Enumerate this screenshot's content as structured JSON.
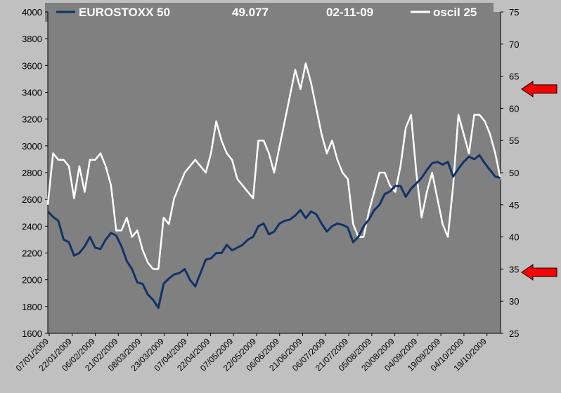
{
  "legend": {
    "series1_label": "EUROSTOXX 50",
    "value": "49.077",
    "date": "02-11-09",
    "series2_label": "oscil 25"
  },
  "colors": {
    "plot_bg": "#808080",
    "page_bg": "#c0c0c0",
    "eurostoxx": "#0f3368",
    "oscil": "#ffffff",
    "arrow": "#ff0000"
  },
  "chart_data": {
    "type": "line",
    "x_tick_labels": [
      "07/01/2009",
      "22/01/2009",
      "06/02/2009",
      "21/02/2009",
      "08/03/2009",
      "23/03/2009",
      "07/04/2009",
      "22/04/2009",
      "07/05/2009",
      "22/05/2009",
      "06/06/2009",
      "21/06/2009",
      "06/07/2009",
      "21/07/2009",
      "05/08/2009",
      "20/08/2009",
      "04/09/2009",
      "19/09/2009",
      "04/10/2009",
      "19/10/2009"
    ],
    "y_left": {
      "min": 1600,
      "max": 4000,
      "ticks": [
        1600,
        1800,
        2000,
        2200,
        2400,
        2600,
        2800,
        3000,
        3200,
        3400,
        3600,
        3800,
        4000
      ]
    },
    "y_right": {
      "min": 25,
      "max": 75,
      "ticks": [
        25,
        30,
        35,
        40,
        45,
        50,
        55,
        60,
        65,
        70,
        75
      ]
    },
    "grid": false,
    "legend_position": "top",
    "markers": [
      {
        "name": "upper-threshold-arrow",
        "axis": "right",
        "value": 63
      },
      {
        "name": "lower-threshold-arrow",
        "axis": "right",
        "value": 34.5
      }
    ],
    "series": [
      {
        "name": "EUROSTOXX 50",
        "axis": "left",
        "points": [
          [
            0,
            2510
          ],
          [
            1,
            2470
          ],
          [
            2,
            2440
          ],
          [
            3,
            2300
          ],
          [
            4,
            2280
          ],
          [
            5,
            2180
          ],
          [
            6,
            2200
          ],
          [
            7,
            2250
          ],
          [
            8,
            2320
          ],
          [
            9,
            2240
          ],
          [
            10,
            2230
          ],
          [
            11,
            2300
          ],
          [
            12,
            2350
          ],
          [
            13,
            2330
          ],
          [
            14,
            2250
          ],
          [
            15,
            2140
          ],
          [
            16,
            2080
          ],
          [
            17,
            1980
          ],
          [
            18,
            1970
          ],
          [
            19,
            1890
          ],
          [
            20,
            1850
          ],
          [
            21,
            1790
          ],
          [
            22,
            1970
          ],
          [
            23,
            2010
          ],
          [
            24,
            2040
          ],
          [
            25,
            2050
          ],
          [
            26,
            2080
          ],
          [
            27,
            2000
          ],
          [
            28,
            1950
          ],
          [
            29,
            2050
          ],
          [
            30,
            2150
          ],
          [
            31,
            2160
          ],
          [
            32,
            2200
          ],
          [
            33,
            2200
          ],
          [
            34,
            2260
          ],
          [
            35,
            2220
          ],
          [
            36,
            2240
          ],
          [
            37,
            2260
          ],
          [
            38,
            2300
          ],
          [
            39,
            2320
          ],
          [
            40,
            2400
          ],
          [
            41,
            2420
          ],
          [
            42,
            2340
          ],
          [
            43,
            2360
          ],
          [
            44,
            2420
          ],
          [
            45,
            2440
          ],
          [
            46,
            2450
          ],
          [
            47,
            2480
          ],
          [
            48,
            2520
          ],
          [
            49,
            2460
          ],
          [
            50,
            2510
          ],
          [
            51,
            2490
          ],
          [
            52,
            2420
          ],
          [
            53,
            2360
          ],
          [
            54,
            2400
          ],
          [
            55,
            2420
          ],
          [
            56,
            2410
          ],
          [
            57,
            2390
          ],
          [
            58,
            2280
          ],
          [
            59,
            2320
          ],
          [
            60,
            2400
          ],
          [
            61,
            2450
          ],
          [
            62,
            2520
          ],
          [
            63,
            2560
          ],
          [
            64,
            2640
          ],
          [
            65,
            2660
          ],
          [
            66,
            2700
          ],
          [
            67,
            2700
          ],
          [
            68,
            2620
          ],
          [
            69,
            2680
          ],
          [
            70,
            2720
          ],
          [
            71,
            2760
          ],
          [
            72,
            2820
          ],
          [
            73,
            2870
          ],
          [
            74,
            2880
          ],
          [
            75,
            2860
          ],
          [
            76,
            2880
          ],
          [
            77,
            2770
          ],
          [
            78,
            2830
          ],
          [
            79,
            2880
          ],
          [
            80,
            2920
          ],
          [
            81,
            2900
          ],
          [
            82,
            2930
          ],
          [
            83,
            2870
          ],
          [
            84,
            2820
          ],
          [
            85,
            2770
          ],
          [
            86,
            2760
          ]
        ]
      },
      {
        "name": "oscil 25",
        "axis": "right",
        "points": [
          [
            0,
            45
          ],
          [
            1,
            53
          ],
          [
            2,
            52
          ],
          [
            3,
            52
          ],
          [
            4,
            51
          ],
          [
            5,
            46
          ],
          [
            6,
            51
          ],
          [
            7,
            47
          ],
          [
            8,
            52
          ],
          [
            9,
            52
          ],
          [
            10,
            53
          ],
          [
            11,
            51
          ],
          [
            12,
            48
          ],
          [
            13,
            41
          ],
          [
            14,
            41
          ],
          [
            15,
            43
          ],
          [
            16,
            40
          ],
          [
            17,
            41
          ],
          [
            18,
            38
          ],
          [
            19,
            36
          ],
          [
            20,
            35
          ],
          [
            21,
            35
          ],
          [
            22,
            43
          ],
          [
            23,
            42
          ],
          [
            24,
            46
          ],
          [
            25,
            48
          ],
          [
            26,
            50
          ],
          [
            27,
            51
          ],
          [
            28,
            52
          ],
          [
            29,
            51
          ],
          [
            30,
            50
          ],
          [
            31,
            53
          ],
          [
            32,
            58
          ],
          [
            33,
            55
          ],
          [
            34,
            53
          ],
          [
            35,
            52
          ],
          [
            36,
            49
          ],
          [
            37,
            48
          ],
          [
            38,
            47
          ],
          [
            39,
            46
          ],
          [
            40,
            55
          ],
          [
            41,
            55
          ],
          [
            42,
            53
          ],
          [
            43,
            50
          ],
          [
            44,
            54
          ],
          [
            45,
            58
          ],
          [
            46,
            62
          ],
          [
            47,
            66
          ],
          [
            48,
            63
          ],
          [
            49,
            67
          ],
          [
            50,
            64
          ],
          [
            51,
            60
          ],
          [
            52,
            56
          ],
          [
            53,
            53
          ],
          [
            54,
            55
          ],
          [
            55,
            52
          ],
          [
            56,
            50
          ],
          [
            57,
            49
          ],
          [
            58,
            42
          ],
          [
            59,
            40
          ],
          [
            60,
            40
          ],
          [
            61,
            44
          ],
          [
            62,
            47
          ],
          [
            63,
            50
          ],
          [
            64,
            50
          ],
          [
            65,
            48
          ],
          [
            66,
            47
          ],
          [
            67,
            51
          ],
          [
            68,
            57
          ],
          [
            69,
            59
          ],
          [
            70,
            50
          ],
          [
            71,
            43
          ],
          [
            72,
            47
          ],
          [
            73,
            50
          ],
          [
            74,
            46
          ],
          [
            75,
            42
          ],
          [
            76,
            40
          ],
          [
            77,
            48
          ],
          [
            78,
            59
          ],
          [
            79,
            56
          ],
          [
            80,
            53
          ],
          [
            81,
            59
          ],
          [
            82,
            59
          ],
          [
            83,
            58
          ],
          [
            84,
            56
          ],
          [
            85,
            53
          ],
          [
            86,
            49
          ]
        ]
      }
    ]
  }
}
